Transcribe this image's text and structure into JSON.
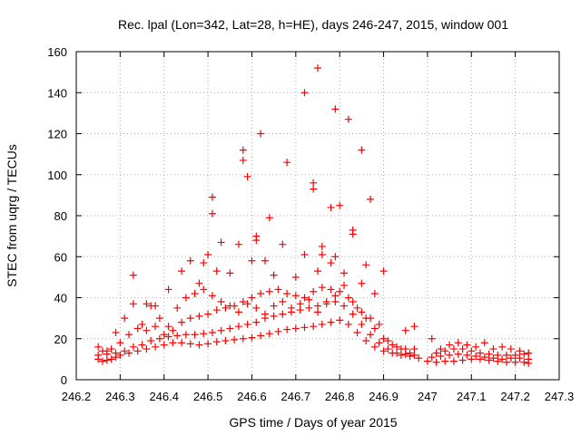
{
  "chart_data": {
    "type": "scatter",
    "title": "Rec. lpal (Lon=342, Lat=28, h=HE), days 246-247, 2015, window 001",
    "xlabel": "GPS time / Days of year 2015",
    "ylabel": "STEC from uqrg / TECUs",
    "xlim": [
      246.2,
      247.3
    ],
    "ylim": [
      0,
      160
    ],
    "x_ticks": [
      246.2,
      246.3,
      246.4,
      246.5,
      246.6,
      246.7,
      246.8,
      246.9,
      247.0,
      247.1,
      247.2,
      247.3
    ],
    "x_tick_labels": [
      "246.2",
      "246.3",
      "246.4",
      "246.5",
      "246.6",
      "246.7",
      "246.8",
      "246.9",
      "247",
      "247.1",
      "247.2",
      "247.3"
    ],
    "y_ticks": [
      0,
      20,
      40,
      60,
      80,
      100,
      120,
      140,
      160
    ],
    "y_tick_labels": [
      "0",
      "20",
      "40",
      "60",
      "80",
      "100",
      "120",
      "140",
      "160"
    ],
    "grid": true,
    "marker": "+",
    "color": "#ff0000",
    "series": [
      {
        "values": [
          [
            246.25,
            10
          ],
          [
            246.26,
            9
          ],
          [
            246.27,
            9.5
          ],
          [
            246.28,
            10
          ],
          [
            246.29,
            11
          ],
          [
            246.3,
            12
          ],
          [
            246.32,
            13
          ],
          [
            246.34,
            14
          ],
          [
            246.36,
            15
          ],
          [
            246.38,
            16
          ],
          [
            246.4,
            17
          ],
          [
            246.42,
            18
          ],
          [
            246.44,
            18
          ],
          [
            246.46,
            17.5
          ],
          [
            246.48,
            17
          ],
          [
            246.5,
            17.5
          ],
          [
            246.52,
            18.5
          ],
          [
            246.54,
            19
          ],
          [
            246.56,
            19.5
          ],
          [
            246.58,
            20
          ],
          [
            246.6,
            20.5
          ],
          [
            246.62,
            21.5
          ],
          [
            246.64,
            22.5
          ],
          [
            246.66,
            23.5
          ],
          [
            246.68,
            24.5
          ],
          [
            246.7,
            25
          ],
          [
            246.72,
            25.5
          ],
          [
            246.74,
            26
          ],
          [
            246.76,
            27
          ],
          [
            246.78,
            28
          ],
          [
            246.8,
            29
          ],
          [
            246.82,
            27
          ],
          [
            246.84,
            23
          ],
          [
            246.86,
            19
          ],
          [
            246.88,
            16
          ],
          [
            246.9,
            14
          ],
          [
            246.92,
            13
          ],
          [
            246.94,
            12
          ],
          [
            246.96,
            11.5
          ],
          [
            246.98,
            10.5
          ],
          [
            247.0,
            9
          ],
          [
            247.02,
            8.5
          ],
          [
            247.04,
            9
          ],
          [
            247.06,
            9
          ],
          [
            247.08,
            9.5
          ],
          [
            247.1,
            10
          ],
          [
            247.12,
            10
          ],
          [
            247.14,
            9.5
          ],
          [
            247.16,
            9
          ],
          [
            247.18,
            8.5
          ],
          [
            247.2,
            8.5
          ],
          [
            247.22,
            8.5
          ],
          [
            247.23,
            8
          ]
        ]
      },
      {
        "values": [
          [
            246.25,
            12
          ],
          [
            246.27,
            12.5
          ],
          [
            246.29,
            13
          ],
          [
            246.31,
            14
          ],
          [
            246.33,
            16
          ],
          [
            246.35,
            17
          ],
          [
            246.37,
            19
          ],
          [
            246.39,
            20
          ],
          [
            246.41,
            21
          ],
          [
            246.43,
            21.5
          ],
          [
            246.45,
            22
          ],
          [
            246.47,
            22
          ],
          [
            246.49,
            22.5
          ],
          [
            246.51,
            23
          ],
          [
            246.53,
            24
          ],
          [
            246.55,
            25
          ],
          [
            246.57,
            26
          ],
          [
            246.59,
            27
          ],
          [
            246.61,
            28
          ],
          [
            246.63,
            30
          ],
          [
            246.65,
            31
          ],
          [
            246.67,
            32
          ],
          [
            246.69,
            33
          ],
          [
            246.71,
            34
          ],
          [
            246.73,
            35
          ],
          [
            246.75,
            36
          ],
          [
            246.77,
            37
          ],
          [
            246.79,
            38
          ],
          [
            246.81,
            36
          ],
          [
            246.83,
            32
          ],
          [
            246.85,
            27
          ],
          [
            246.87,
            22
          ],
          [
            246.89,
            18
          ],
          [
            246.91,
            15
          ],
          [
            246.93,
            13
          ],
          [
            246.95,
            12.5
          ],
          [
            246.97,
            12
          ],
          [
            247.01,
            11
          ],
          [
            247.03,
            11.5
          ],
          [
            247.05,
            12
          ],
          [
            247.07,
            12.5
          ],
          [
            247.09,
            12
          ],
          [
            247.11,
            11.5
          ],
          [
            247.13,
            11
          ],
          [
            247.15,
            10.5
          ],
          [
            247.17,
            10
          ],
          [
            247.19,
            10.5
          ],
          [
            247.21,
            10.5
          ],
          [
            247.23,
            10
          ]
        ]
      },
      {
        "values": [
          [
            246.26,
            14
          ],
          [
            246.28,
            15
          ],
          [
            246.3,
            18
          ],
          [
            246.32,
            22
          ],
          [
            246.34,
            25
          ],
          [
            246.36,
            24
          ],
          [
            246.38,
            26
          ],
          [
            246.4,
            22
          ],
          [
            246.42,
            24
          ],
          [
            246.44,
            28
          ],
          [
            246.46,
            30
          ],
          [
            246.48,
            31
          ],
          [
            246.5,
            32
          ],
          [
            246.52,
            34
          ],
          [
            246.54,
            35
          ],
          [
            246.56,
            36
          ],
          [
            246.58,
            38
          ],
          [
            246.6,
            40
          ],
          [
            246.62,
            42
          ],
          [
            246.64,
            43
          ],
          [
            246.66,
            44
          ],
          [
            246.68,
            42
          ],
          [
            246.7,
            41
          ],
          [
            246.72,
            40
          ],
          [
            246.74,
            43
          ],
          [
            246.76,
            45
          ],
          [
            246.78,
            44
          ],
          [
            246.8,
            43
          ],
          [
            246.82,
            40
          ],
          [
            246.84,
            35
          ],
          [
            246.86,
            30
          ],
          [
            246.88,
            25
          ],
          [
            246.9,
            20
          ],
          [
            246.92,
            17
          ],
          [
            246.94,
            15
          ],
          [
            246.96,
            13
          ],
          [
            247.02,
            13
          ],
          [
            247.04,
            14
          ],
          [
            247.06,
            15
          ],
          [
            247.08,
            15
          ],
          [
            247.1,
            14
          ],
          [
            247.12,
            13
          ],
          [
            247.14,
            12.5
          ],
          [
            247.16,
            12
          ],
          [
            247.18,
            12
          ],
          [
            247.2,
            12
          ],
          [
            247.22,
            12.5
          ],
          [
            247.23,
            13
          ]
        ]
      },
      {
        "values": [
          [
            246.25,
            16
          ],
          [
            246.27,
            14
          ],
          [
            246.29,
            23
          ],
          [
            246.31,
            30
          ],
          [
            246.33,
            37
          ],
          [
            246.35,
            27
          ],
          [
            246.37,
            36
          ],
          [
            246.39,
            30
          ],
          [
            246.41,
            26
          ],
          [
            246.43,
            35
          ],
          [
            246.45,
            40
          ],
          [
            246.47,
            42
          ],
          [
            246.49,
            44
          ],
          [
            246.51,
            41
          ],
          [
            246.53,
            38
          ],
          [
            246.55,
            36
          ],
          [
            246.57,
            33
          ],
          [
            246.59,
            37
          ],
          [
            246.61,
            35
          ],
          [
            246.63,
            32
          ],
          [
            246.65,
            36
          ],
          [
            246.67,
            38
          ],
          [
            246.69,
            35
          ],
          [
            246.71,
            37
          ],
          [
            246.73,
            39
          ],
          [
            246.75,
            33
          ],
          [
            246.77,
            38
          ],
          [
            246.79,
            41
          ],
          [
            246.81,
            46
          ],
          [
            246.83,
            38
          ],
          [
            246.85,
            33
          ],
          [
            246.87,
            30
          ],
          [
            246.89,
            27
          ],
          [
            246.91,
            19
          ],
          [
            246.93,
            16
          ],
          [
            246.95,
            15
          ],
          [
            246.97,
            15
          ],
          [
            247.01,
            20
          ],
          [
            247.03,
            15
          ],
          [
            247.05,
            17
          ],
          [
            247.07,
            18
          ],
          [
            247.09,
            17
          ],
          [
            247.11,
            16
          ],
          [
            247.13,
            18
          ],
          [
            247.15,
            15
          ],
          [
            247.17,
            16
          ],
          [
            247.19,
            15
          ],
          [
            247.21,
            14
          ],
          [
            247.23,
            13
          ]
        ]
      },
      {
        "values": [
          [
            246.33,
            51
          ],
          [
            246.36,
            37
          ],
          [
            246.38,
            36
          ],
          [
            246.41,
            44
          ],
          [
            246.44,
            53
          ],
          [
            246.46,
            58
          ],
          [
            246.48,
            47
          ],
          [
            246.49,
            57
          ],
          [
            246.5,
            61
          ],
          [
            246.51,
            89
          ],
          [
            246.51,
            81
          ],
          [
            246.52,
            53
          ],
          [
            246.53,
            67
          ],
          [
            246.55,
            52
          ],
          [
            246.57,
            66
          ],
          [
            246.58,
            112
          ],
          [
            246.58,
            107
          ],
          [
            246.59,
            99
          ],
          [
            246.6,
            58
          ],
          [
            246.61,
            70
          ],
          [
            246.61,
            68
          ],
          [
            246.62,
            120
          ],
          [
            246.63,
            58
          ],
          [
            246.64,
            79
          ],
          [
            246.65,
            51
          ],
          [
            246.67,
            66
          ],
          [
            246.68,
            106
          ],
          [
            246.7,
            50
          ],
          [
            246.72,
            140
          ],
          [
            246.72,
            61
          ],
          [
            246.74,
            96
          ],
          [
            246.74,
            93
          ],
          [
            246.75,
            152
          ],
          [
            246.75,
            53
          ],
          [
            246.76,
            65
          ],
          [
            246.76,
            61
          ],
          [
            246.78,
            84
          ],
          [
            246.78,
            57
          ],
          [
            246.79,
            60
          ],
          [
            246.79,
            132
          ],
          [
            246.8,
            85
          ],
          [
            246.81,
            52
          ],
          [
            246.82,
            127
          ],
          [
            246.83,
            73
          ],
          [
            246.83,
            71
          ],
          [
            246.85,
            112
          ],
          [
            246.85,
            47
          ],
          [
            246.86,
            56
          ],
          [
            246.87,
            88
          ],
          [
            246.88,
            42
          ],
          [
            246.9,
            53
          ],
          [
            246.95,
            24
          ],
          [
            246.97,
            26
          ]
        ]
      }
    ]
  }
}
